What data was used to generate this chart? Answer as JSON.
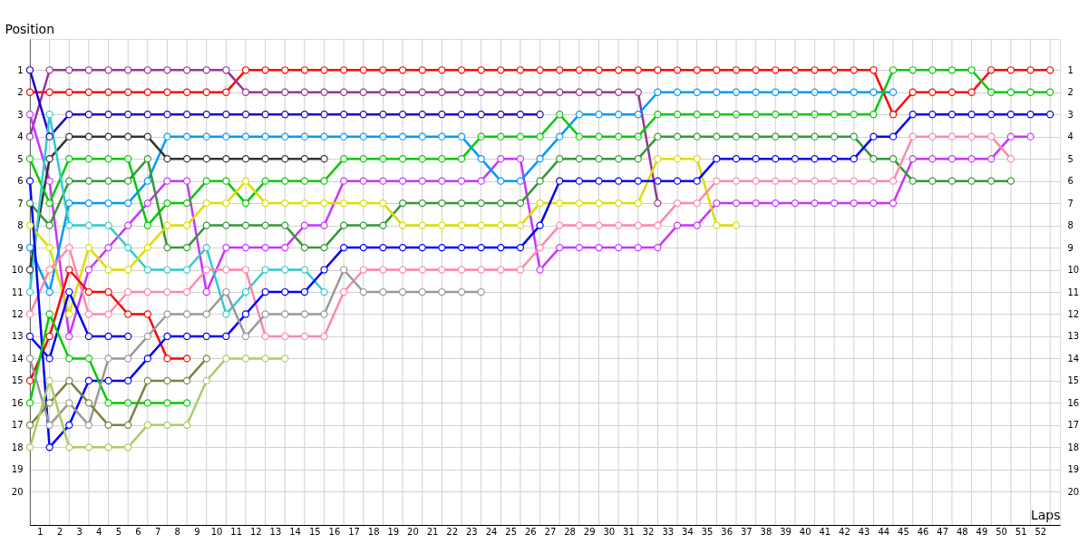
{
  "chart_data": {
    "type": "line",
    "xlabel": "Laps",
    "ylabel": "Position",
    "x": [
      0,
      1,
      2,
      3,
      4,
      5,
      6,
      7,
      8,
      9,
      10,
      11,
      12,
      13,
      14,
      15,
      16,
      17,
      18,
      19,
      20,
      21,
      22,
      23,
      24,
      25,
      26,
      27,
      28,
      29,
      30,
      31,
      32,
      33,
      34,
      35,
      36,
      37,
      38,
      39,
      40,
      41,
      42,
      43,
      44,
      45,
      46,
      47,
      48,
      49,
      50,
      51,
      52
    ],
    "xlim": [
      0,
      52.5
    ],
    "xticks": [
      {
        "value": 0,
        "label": null
      },
      {
        "value": 1,
        "label": null
      },
      {
        "value": 2,
        "label": null
      },
      {
        "value": 3,
        "label": null
      },
      {
        "value": 4,
        "label": null
      },
      {
        "value": 5,
        "label": null
      },
      {
        "value": 6,
        "label": null
      },
      {
        "value": 7,
        "label": null
      },
      {
        "value": 8,
        "label": null
      },
      {
        "value": 9,
        "label": null
      },
      {
        "value": 10,
        "label": null
      },
      {
        "value": 11,
        "label": null
      },
      {
        "value": 12,
        "label": null
      },
      {
        "value": 13,
        "label": null
      },
      {
        "value": 14,
        "label": null
      },
      {
        "value": 15,
        "label": null
      },
      {
        "value": 16,
        "label": null
      },
      {
        "value": 17,
        "label": null
      },
      {
        "value": 18,
        "label": null
      },
      {
        "value": 19,
        "label": null
      },
      {
        "value": 20,
        "label": null
      },
      {
        "value": 21,
        "label": null
      },
      {
        "value": 22,
        "label": null
      },
      {
        "value": 23,
        "label": null
      },
      {
        "value": 24,
        "label": null
      },
      {
        "value": 25,
        "label": null
      },
      {
        "value": 26,
        "label": null
      },
      {
        "value": 27,
        "label": null
      },
      {
        "value": 28,
        "label": null
      },
      {
        "value": 29,
        "label": null
      },
      {
        "value": 30,
        "label": null
      },
      {
        "value": 31,
        "label": null
      },
      {
        "value": 32,
        "label": null
      },
      {
        "value": 33,
        "label": null
      },
      {
        "value": 34,
        "label": null
      },
      {
        "value": 35,
        "label": null
      },
      {
        "value": 36,
        "label": null
      },
      {
        "value": 37,
        "label": null
      },
      {
        "value": 38,
        "label": null
      },
      {
        "value": 39,
        "label": null
      },
      {
        "value": 40,
        "label": null
      },
      {
        "value": 41,
        "label": null
      },
      {
        "value": 42,
        "label": null
      },
      {
        "value": 43,
        "label": null
      },
      {
        "value": 44,
        "label": null
      },
      {
        "value": 45,
        "label": null
      },
      {
        "value": 46,
        "label": null
      },
      {
        "value": 47,
        "label": null
      },
      {
        "value": 48,
        "label": null
      },
      {
        "value": 49,
        "label": null
      },
      {
        "value": 50,
        "label": null
      },
      {
        "value": 51,
        "label": null
      },
      {
        "value": 52,
        "label": null
      },
      {
        "value": 0.5,
        "label": "1"
      },
      {
        "value": 1.5,
        "label": "2"
      },
      {
        "value": 2.5,
        "label": "3"
      },
      {
        "value": 3.5,
        "label": "4"
      },
      {
        "value": 4.5,
        "label": "5"
      },
      {
        "value": 5.5,
        "label": "6"
      },
      {
        "value": 6.5,
        "label": "7"
      },
      {
        "value": 7.5,
        "label": "8"
      },
      {
        "value": 8.5,
        "label": "9"
      },
      {
        "value": 9.5,
        "label": "10"
      },
      {
        "value": 10.5,
        "label": "11"
      },
      {
        "value": 11.5,
        "label": "12"
      },
      {
        "value": 12.5,
        "label": "13"
      },
      {
        "value": 13.5,
        "label": "14"
      },
      {
        "value": 14.5,
        "label": "15"
      },
      {
        "value": 15.5,
        "label": "16"
      },
      {
        "value": 16.5,
        "label": "17"
      },
      {
        "value": 17.5,
        "label": "18"
      },
      {
        "value": 18.5,
        "label": "19"
      },
      {
        "value": 19.5,
        "label": "20"
      },
      {
        "value": 20.5,
        "label": "21"
      },
      {
        "value": 21.5,
        "label": "22"
      },
      {
        "value": 22.5,
        "label": "23"
      },
      {
        "value": 23.5,
        "label": "24"
      },
      {
        "value": 24.5,
        "label": "25"
      },
      {
        "value": 25.5,
        "label": "26"
      },
      {
        "value": 26.5,
        "label": "27"
      },
      {
        "value": 27.5,
        "label": "28"
      },
      {
        "value": 28.5,
        "label": "29"
      },
      {
        "value": 29.5,
        "label": "30"
      },
      {
        "value": 30.5,
        "label": "31"
      },
      {
        "value": 31.5,
        "label": "32"
      },
      {
        "value": 32.5,
        "label": "33"
      },
      {
        "value": 33.5,
        "label": "34"
      },
      {
        "value": 34.5,
        "label": "35"
      },
      {
        "value": 35.5,
        "label": "36"
      },
      {
        "value": 36.5,
        "label": "37"
      },
      {
        "value": 37.5,
        "label": "38"
      },
      {
        "value": 38.5,
        "label": "39"
      },
      {
        "value": 39.5,
        "label": "40"
      },
      {
        "value": 40.5,
        "label": "41"
      },
      {
        "value": 41.5,
        "label": "42"
      },
      {
        "value": 42.5,
        "label": "43"
      },
      {
        "value": 43.5,
        "label": "44"
      },
      {
        "value": 44.5,
        "label": "45"
      },
      {
        "value": 45.5,
        "label": "46"
      },
      {
        "value": 46.5,
        "label": "47"
      },
      {
        "value": 47.5,
        "label": "48"
      },
      {
        "value": 48.5,
        "label": "49"
      },
      {
        "value": 49.5,
        "label": "50"
      },
      {
        "value": 50.5,
        "label": "51"
      },
      {
        "value": 51.5,
        "label": "52"
      }
    ],
    "ylim": [
      21.5,
      -0.4
    ],
    "yticks": [
      1,
      2,
      3,
      4,
      5,
      6,
      7,
      8,
      9,
      10,
      11,
      12,
      13,
      14,
      15,
      16,
      17,
      18,
      19,
      20
    ],
    "y2lim": [
      21.5,
      -0.4
    ],
    "y2ticks": [
      1,
      2,
      3,
      4,
      5,
      6,
      7,
      8,
      9,
      10,
      11,
      12,
      13,
      14,
      15,
      16,
      17,
      18,
      19,
      20
    ],
    "grid": true,
    "marker": "circle",
    "line_style": "solid",
    "series": [
      {
        "color": "#ff0000",
        "values": [
          2,
          2,
          2,
          2,
          2,
          2,
          2,
          2,
          2,
          2,
          2,
          1,
          1,
          1,
          1,
          1,
          1,
          1,
          1,
          1,
          1,
          1,
          1,
          1,
          1,
          1,
          1,
          1,
          1,
          1,
          1,
          1,
          1,
          1,
          1,
          1,
          1,
          1,
          1,
          1,
          1,
          1,
          1,
          1,
          3,
          2,
          2,
          2,
          2,
          1,
          1,
          1,
          1
        ]
      },
      {
        "color": "#993399",
        "values": [
          4,
          1,
          1,
          1,
          1,
          1,
          1,
          1,
          1,
          1,
          1,
          2,
          2,
          2,
          2,
          2,
          2,
          2,
          2,
          2,
          2,
          2,
          2,
          2,
          2,
          2,
          2,
          2,
          2,
          2,
          2,
          2,
          7,
          null,
          null,
          null,
          null,
          null,
          null,
          null,
          null,
          null,
          null,
          null,
          null,
          null,
          null,
          null,
          null,
          null,
          null,
          null,
          null
        ]
      },
      {
        "color": "#1a00cc",
        "values": [
          1,
          4,
          3,
          3,
          3,
          3,
          3,
          3,
          3,
          3,
          3,
          3,
          3,
          3,
          3,
          3,
          3,
          3,
          3,
          3,
          3,
          3,
          3,
          3,
          3,
          3,
          3,
          null,
          null,
          null,
          null,
          null,
          null,
          null,
          null,
          null,
          null,
          null,
          null,
          null,
          null,
          null,
          null,
          null,
          null,
          null,
          null,
          null,
          null,
          null,
          null,
          null,
          null
        ]
      },
      {
        "color": "#cc33ff",
        "values": [
          3,
          6,
          13,
          10,
          9,
          8,
          7,
          6,
          6,
          11,
          9,
          9,
          9,
          9,
          8,
          8,
          6,
          6,
          6,
          6,
          6,
          6,
          6,
          6,
          5,
          5,
          10,
          9,
          9,
          9,
          9,
          9,
          9,
          8,
          8,
          7,
          7,
          7,
          7,
          7,
          7,
          7,
          7,
          7,
          7,
          5,
          5,
          5,
          5,
          5,
          4,
          4,
          null
        ]
      },
      {
        "color": "#0099ff",
        "values": [
          9,
          11,
          7,
          7,
          7,
          7,
          6,
          4,
          4,
          4,
          4,
          4,
          4,
          4,
          4,
          4,
          4,
          4,
          4,
          4,
          4,
          4,
          4,
          5,
          6,
          6,
          5,
          4,
          3,
          3,
          3,
          3,
          2,
          2,
          2,
          2,
          2,
          2,
          2,
          2,
          2,
          2,
          2,
          2,
          2,
          null,
          null,
          null,
          null,
          null,
          null,
          null,
          null
        ]
      },
      {
        "color": "#333333",
        "values": [
          10,
          5,
          4,
          4,
          4,
          4,
          4,
          5,
          5,
          5,
          5,
          5,
          5,
          5,
          5,
          5,
          null,
          null,
          null,
          null,
          null,
          null,
          null,
          null,
          null,
          null,
          null,
          null,
          null,
          null,
          null,
          null,
          null,
          null,
          null,
          null,
          null,
          null,
          null,
          null,
          null,
          null,
          null,
          null,
          null,
          null,
          null,
          null,
          null,
          null,
          null,
          null,
          null
        ]
      },
      {
        "color": "#00cc00",
        "values": [
          5,
          7,
          5,
          5,
          5,
          5,
          8,
          7,
          7,
          6,
          6,
          7,
          6,
          6,
          6,
          6,
          5,
          5,
          5,
          5,
          5,
          5,
          5,
          4,
          4,
          4,
          4,
          3,
          4,
          4,
          4,
          4,
          3,
          3,
          3,
          3,
          3,
          3,
          3,
          3,
          3,
          3,
          3,
          3,
          1,
          1,
          1,
          1,
          1,
          2,
          2,
          2,
          2
        ]
      },
      {
        "color": "#339933",
        "values": [
          7,
          8,
          6,
          6,
          6,
          6,
          5,
          9,
          9,
          8,
          8,
          8,
          8,
          8,
          9,
          9,
          8,
          8,
          8,
          7,
          7,
          7,
          7,
          7,
          7,
          7,
          6,
          5,
          5,
          5,
          5,
          5,
          4,
          4,
          4,
          4,
          4,
          4,
          4,
          4,
          4,
          4,
          4,
          5,
          5,
          6,
          6,
          6,
          6,
          6,
          6,
          null,
          null
        ]
      },
      {
        "color": "#33cccc",
        "values": [
          11,
          3,
          8,
          8,
          8,
          9,
          10,
          10,
          10,
          9,
          12,
          11,
          10,
          10,
          10,
          11,
          null,
          null,
          null,
          null,
          null,
          null,
          null,
          null,
          null,
          null,
          null,
          null,
          null,
          null,
          null,
          null,
          null,
          null,
          null,
          null,
          null,
          null,
          null,
          null,
          null,
          null,
          null,
          null,
          null,
          null,
          null,
          null,
          null,
          null,
          null,
          null,
          null
        ]
      },
      {
        "color": "#dddd00",
        "values": [
          8,
          9,
          12,
          9,
          10,
          10,
          9,
          8,
          8,
          7,
          7,
          6,
          7,
          7,
          7,
          7,
          7,
          7,
          7,
          8,
          8,
          8,
          8,
          8,
          8,
          8,
          7,
          7,
          7,
          7,
          7,
          7,
          5,
          5,
          5,
          8,
          8,
          null,
          null,
          null,
          null,
          null,
          null,
          null,
          null,
          null,
          null,
          null,
          null,
          null,
          null,
          null,
          null
        ]
      },
      {
        "color": "#ff88aa",
        "values": [
          12,
          10,
          9,
          12,
          12,
          11,
          11,
          11,
          11,
          10,
          10,
          10,
          13,
          13,
          13,
          13,
          11,
          10,
          10,
          10,
          10,
          10,
          10,
          10,
          10,
          10,
          9,
          8,
          8,
          8,
          8,
          8,
          8,
          7,
          7,
          6,
          6,
          6,
          6,
          6,
          6,
          6,
          6,
          6,
          6,
          4,
          4,
          4,
          4,
          4,
          5,
          null,
          null
        ]
      },
      {
        "color": "#ff0000",
        "values": [
          15,
          13,
          10,
          11,
          11,
          12,
          12,
          14,
          14,
          null,
          null,
          null,
          null,
          null,
          null,
          null,
          null,
          null,
          null,
          null,
          null,
          null,
          null,
          null,
          null,
          null,
          null,
          null,
          null,
          null,
          null,
          null,
          null,
          null,
          null,
          null,
          null,
          null,
          null,
          null,
          null,
          null,
          null,
          null,
          null,
          null,
          null,
          null,
          null,
          null,
          null,
          null,
          null
        ]
      },
      {
        "color": "#0000ff",
        "values": [
          6,
          18,
          17,
          15,
          15,
          15,
          14,
          13,
          13,
          13,
          13,
          12,
          11,
          11,
          11,
          10,
          9,
          9,
          9,
          9,
          9,
          9,
          9,
          9,
          9,
          9,
          8,
          6,
          6,
          6,
          6,
          6,
          6,
          6,
          6,
          5,
          5,
          5,
          5,
          5,
          5,
          5,
          5,
          4,
          4,
          3,
          3,
          3,
          3,
          3,
          3,
          3,
          3
        ]
      },
      {
        "color": "#0000ff",
        "values": [
          13,
          14,
          11,
          13,
          13,
          13,
          null,
          null,
          null,
          null,
          null,
          null,
          null,
          null,
          null,
          null,
          null,
          null,
          null,
          null,
          null,
          null,
          null,
          null,
          null,
          null,
          null,
          null,
          null,
          null,
          null,
          null,
          null,
          null,
          null,
          null,
          null,
          null,
          null,
          null,
          null,
          null,
          null,
          null,
          null,
          null,
          null,
          null,
          null,
          null,
          null,
          null,
          null
        ]
      },
      {
        "color": "#00cc00",
        "values": [
          16,
          12,
          14,
          14,
          16,
          16,
          16,
          16,
          16,
          null,
          null,
          null,
          null,
          null,
          null,
          null,
          null,
          null,
          null,
          null,
          null,
          null,
          null,
          null,
          null,
          null,
          null,
          null,
          null,
          null,
          null,
          null,
          null,
          null,
          null,
          null,
          null,
          null,
          null,
          null,
          null,
          null,
          null,
          null,
          null,
          null,
          null,
          null,
          null,
          null,
          null,
          null,
          null
        ]
      },
      {
        "color": "#999999",
        "values": [
          14,
          17,
          16,
          17,
          14,
          14,
          13,
          12,
          12,
          12,
          11,
          13,
          12,
          12,
          12,
          12,
          10,
          11,
          11,
          11,
          11,
          11,
          11,
          11,
          null,
          null,
          null,
          null,
          null,
          null,
          null,
          null,
          null,
          null,
          null,
          null,
          null,
          null,
          null,
          null,
          null,
          null,
          null,
          null,
          null,
          null,
          null,
          null,
          null,
          null,
          null,
          null,
          null
        ]
      },
      {
        "color": "#808040",
        "values": [
          17,
          16,
          15,
          16,
          17,
          17,
          15,
          15,
          15,
          14,
          null,
          null,
          null,
          null,
          null,
          null,
          null,
          null,
          null,
          null,
          null,
          null,
          null,
          null,
          null,
          null,
          null,
          null,
          null,
          null,
          null,
          null,
          null,
          null,
          null,
          null,
          null,
          null,
          null,
          null,
          null,
          null,
          null,
          null,
          null,
          null,
          null,
          null,
          null,
          null,
          null,
          null,
          null
        ]
      },
      {
        "color": "#aacc66",
        "values": [
          18,
          15,
          18,
          18,
          18,
          18,
          17,
          17,
          17,
          15,
          14,
          14,
          14,
          14,
          null,
          null,
          null,
          null,
          null,
          null,
          null,
          null,
          null,
          null,
          null,
          null,
          null,
          null,
          null,
          null,
          null,
          null,
          null,
          null,
          null,
          null,
          null,
          null,
          null,
          null,
          null,
          null,
          null,
          null,
          null,
          null,
          null,
          null,
          null,
          null,
          null,
          null,
          null
        ]
      }
    ]
  }
}
